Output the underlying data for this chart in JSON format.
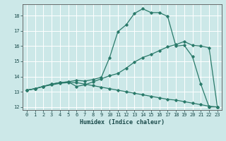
{
  "xlabel": "Humidex (Indice chaleur)",
  "background_color": "#cce8e8",
  "grid_color": "#ffffff",
  "line_color": "#2a7a6a",
  "xlim": [
    -0.5,
    23.5
  ],
  "ylim": [
    11.8,
    18.75
  ],
  "yticks": [
    12,
    13,
    14,
    15,
    16,
    17,
    18
  ],
  "xticks": [
    0,
    1,
    2,
    3,
    4,
    5,
    6,
    7,
    8,
    9,
    10,
    11,
    12,
    13,
    14,
    15,
    16,
    17,
    18,
    19,
    20,
    21,
    22,
    23
  ],
  "curve_upper_x": [
    0,
    1,
    2,
    3,
    4,
    5,
    6,
    7,
    8,
    9,
    10,
    11,
    12,
    13,
    14,
    15,
    16,
    17,
    18,
    19,
    20,
    21,
    22,
    23
  ],
  "curve_upper_y": [
    13.1,
    13.2,
    13.35,
    13.5,
    13.6,
    13.65,
    13.75,
    13.7,
    13.8,
    13.95,
    15.25,
    16.95,
    17.4,
    18.15,
    18.45,
    18.2,
    18.2,
    17.95,
    16.0,
    16.05,
    15.3,
    13.5,
    12.0,
    12.0
  ],
  "curve_mid_x": [
    0,
    1,
    2,
    3,
    4,
    5,
    6,
    7,
    8,
    9,
    10,
    11,
    12,
    13,
    14,
    15,
    16,
    17,
    18,
    19,
    20,
    21,
    22,
    23
  ],
  "curve_mid_y": [
    13.1,
    13.2,
    13.35,
    13.5,
    13.6,
    13.65,
    13.35,
    13.45,
    13.65,
    13.85,
    14.05,
    14.2,
    14.55,
    14.95,
    15.25,
    15.45,
    15.7,
    15.95,
    16.1,
    16.3,
    16.05,
    16.0,
    15.9,
    12.0
  ],
  "curve_low_x": [
    0,
    1,
    2,
    3,
    4,
    5,
    6,
    7,
    8,
    9,
    10,
    11,
    12,
    13,
    14,
    15,
    16,
    17,
    18,
    19,
    20,
    21,
    22,
    23
  ],
  "curve_low_y": [
    13.1,
    13.2,
    13.35,
    13.45,
    13.55,
    13.6,
    13.6,
    13.5,
    13.4,
    13.3,
    13.2,
    13.1,
    13.0,
    12.9,
    12.8,
    12.7,
    12.6,
    12.5,
    12.45,
    12.35,
    12.25,
    12.15,
    12.05,
    12.0
  ]
}
